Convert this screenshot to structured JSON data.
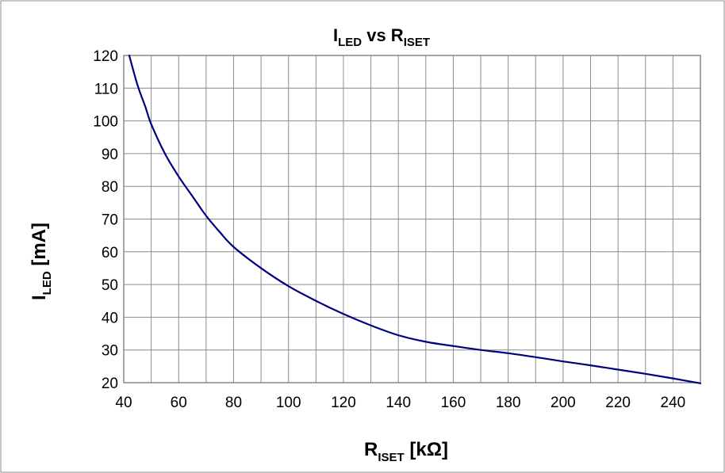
{
  "chart_data": {
    "type": "line",
    "title": {
      "main": "I",
      "sub": "LED",
      "rest": " vs R",
      "sub2": "ISET"
    },
    "xlabel": {
      "main": "R",
      "sub": "ISET",
      "rest": " [kΩ]"
    },
    "ylabel": {
      "main": "I",
      "sub": "LED",
      "rest": " [mA]"
    },
    "xlim": [
      40,
      250
    ],
    "ylim": [
      20,
      120
    ],
    "x_ticks_labeled": [
      40,
      60,
      80,
      100,
      120,
      140,
      160,
      180,
      200,
      220,
      240
    ],
    "x_gridlines": [
      40,
      50,
      60,
      70,
      80,
      90,
      100,
      110,
      120,
      130,
      140,
      150,
      160,
      170,
      180,
      190,
      200,
      210,
      220,
      230,
      240,
      250
    ],
    "y_ticks": [
      20,
      30,
      40,
      50,
      60,
      70,
      80,
      90,
      100,
      110,
      120
    ],
    "grid": true,
    "legend": "none",
    "series": [
      {
        "color": "#000080",
        "x": [
          42,
          45,
          48,
          50,
          55,
          60,
          65,
          70,
          75,
          80,
          90,
          100,
          110,
          120,
          130,
          140,
          150,
          160,
          170,
          180,
          190,
          200,
          210,
          220,
          230,
          240,
          250
        ],
        "y": [
          120,
          111,
          104,
          99,
          90,
          83,
          77,
          71,
          66,
          61.5,
          55,
          49.5,
          45,
          41,
          37.5,
          34.5,
          32.5,
          31.2,
          30,
          29,
          27.8,
          26.5,
          25.3,
          24,
          22.7,
          21.3,
          19.8
        ]
      }
    ]
  }
}
